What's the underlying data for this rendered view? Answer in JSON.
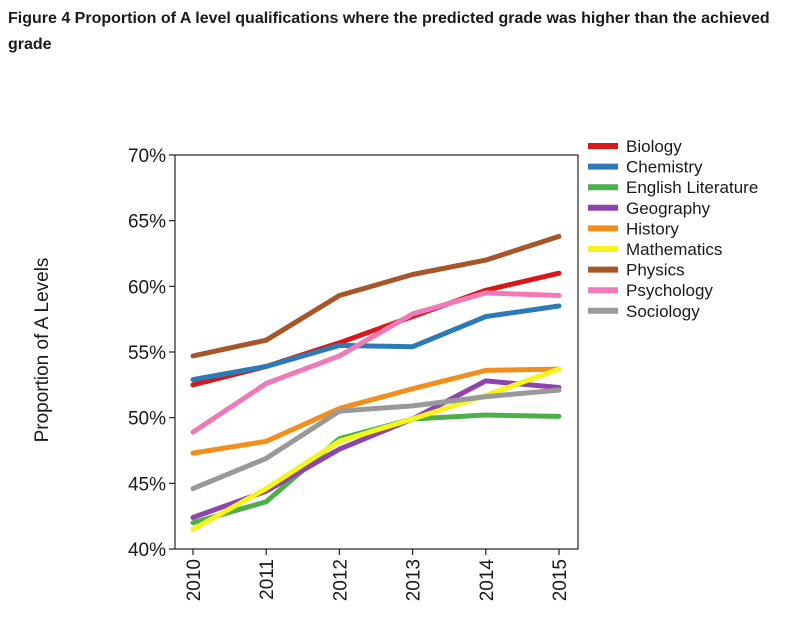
{
  "title": "Figure 4 Proportion of A level qualifications where the predicted grade was higher than the achieved grade",
  "chart_data": {
    "type": "line",
    "title": "Figure 4 Proportion of A level qualifications where the predicted grade was higher than the achieved grade",
    "xlabel": "",
    "ylabel": "Proportion of A Levels",
    "x": [
      "2010",
      "2011",
      "2012",
      "2013",
      "2014",
      "2015"
    ],
    "ylim": [
      40,
      70
    ],
    "yticks": [
      40,
      45,
      50,
      55,
      60,
      65,
      70
    ],
    "ytick_labels": [
      "40%",
      "45%",
      "50%",
      "55%",
      "60%",
      "65%",
      "70%"
    ],
    "legend_position": "right",
    "series": [
      {
        "name": "Biology",
        "color": "#d7191c",
        "values": [
          52.5,
          53.9,
          55.7,
          57.7,
          59.7,
          61.0
        ]
      },
      {
        "name": "Chemistry",
        "color": "#2c7bb6",
        "values": [
          52.9,
          53.9,
          55.5,
          55.4,
          57.7,
          58.5
        ]
      },
      {
        "name": "English Literature",
        "color": "#4daf4a",
        "values": [
          42.0,
          43.6,
          48.4,
          49.9,
          50.2,
          50.1
        ]
      },
      {
        "name": "Geography",
        "color": "#8e44ad",
        "values": [
          42.4,
          44.4,
          47.6,
          49.9,
          52.8,
          52.3
        ]
      },
      {
        "name": "History",
        "color": "#f28e1c",
        "values": [
          47.3,
          48.2,
          50.7,
          52.2,
          53.6,
          53.7
        ]
      },
      {
        "name": "Mathematics",
        "color": "#f5f51b",
        "values": [
          41.5,
          44.6,
          48.2,
          49.9,
          51.7,
          53.7
        ]
      },
      {
        "name": "Physics",
        "color": "#a65628",
        "values": [
          54.7,
          55.9,
          59.3,
          60.9,
          62.0,
          63.8
        ]
      },
      {
        "name": "Psychology",
        "color": "#f07ab8",
        "values": [
          48.9,
          52.6,
          54.7,
          57.9,
          59.5,
          59.3
        ]
      },
      {
        "name": "Sociology",
        "color": "#999999",
        "values": [
          44.6,
          46.9,
          50.5,
          50.9,
          51.6,
          52.1
        ]
      }
    ]
  }
}
